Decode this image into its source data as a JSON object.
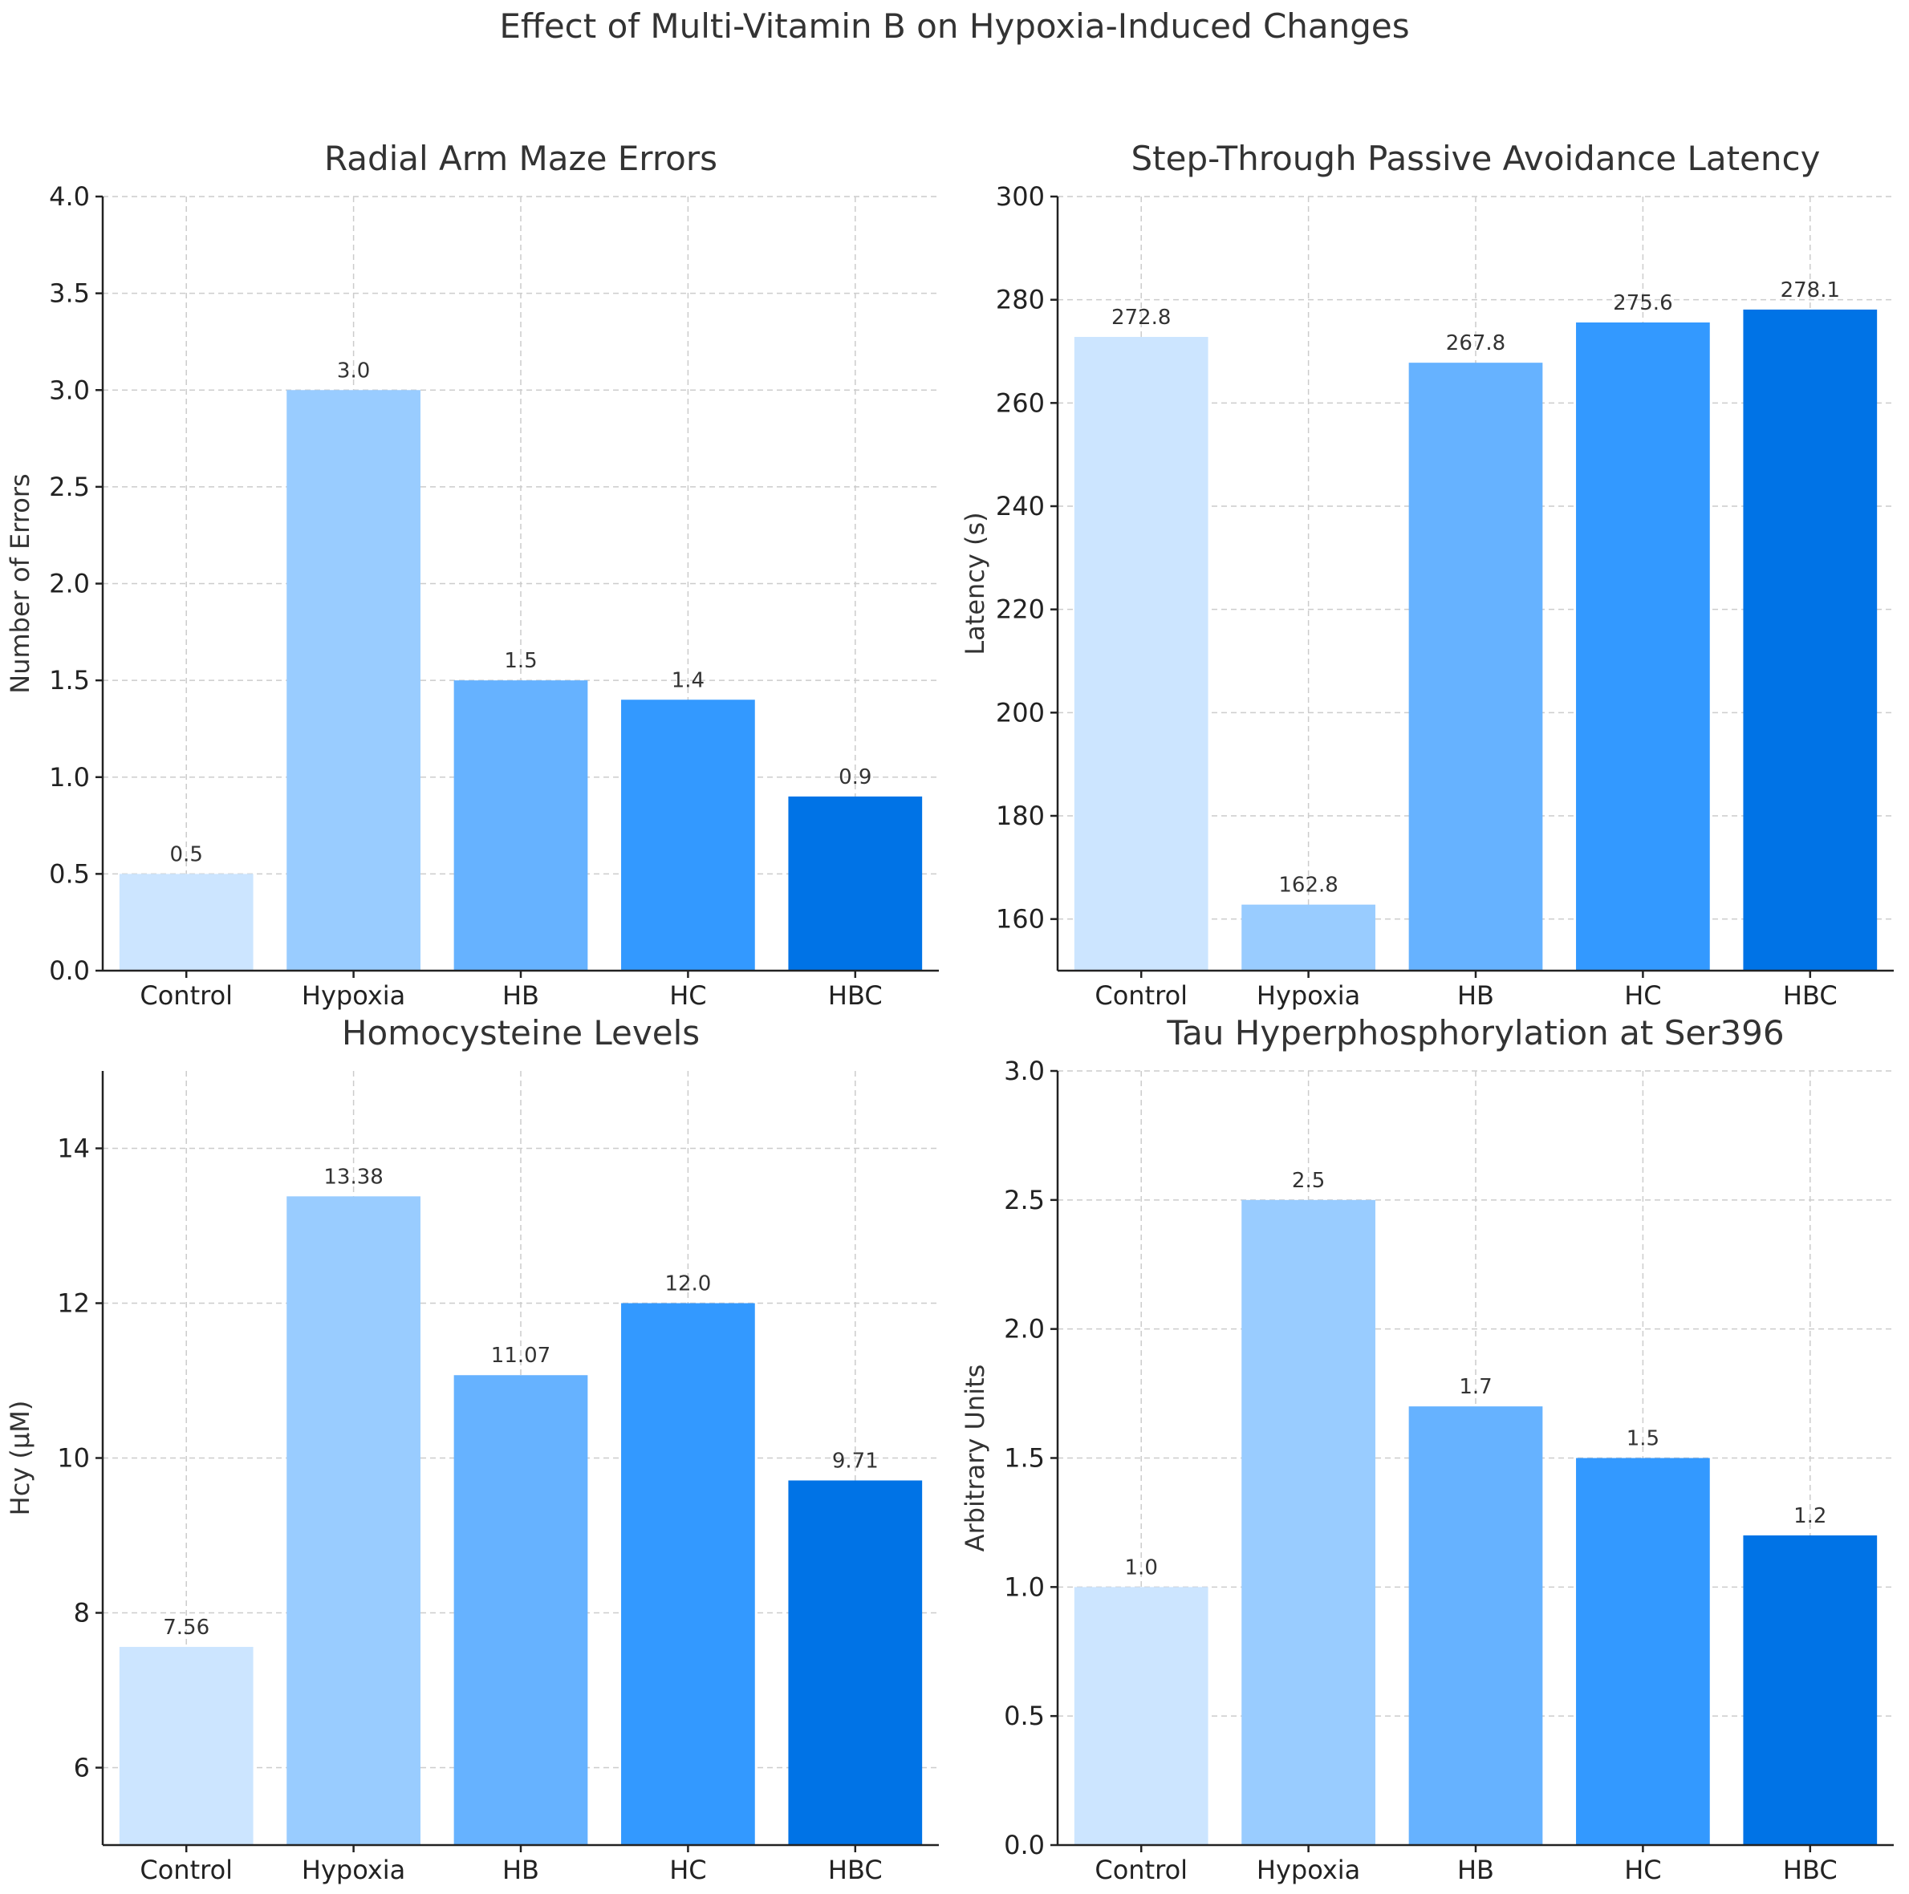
{
  "title": "Effect of Multi-Vitamin B on Hypoxia-Induced Changes",
  "colors": [
    "#cce5ff",
    "#99ccff",
    "#66b2ff",
    "#3399ff",
    "#0073e6"
  ],
  "chart_data": [
    {
      "type": "bar",
      "title": "Radial Arm Maze Errors",
      "xlabel": "",
      "ylabel": "Number of Errors",
      "categories": [
        "Control",
        "Hypoxia",
        "HB",
        "HC",
        "HBC"
      ],
      "values": [
        0.5,
        3.0,
        1.5,
        1.4,
        0.9
      ],
      "value_labels": [
        "0.5",
        "3.0",
        "1.5",
        "1.4",
        "0.9"
      ],
      "ylim": [
        0,
        4
      ],
      "yticks": [
        0.0,
        0.5,
        1.0,
        1.5,
        2.0,
        2.5,
        3.0,
        3.5,
        4.0
      ],
      "ytick_labels": [
        "0.0",
        "0.5",
        "1.0",
        "1.5",
        "2.0",
        "2.5",
        "3.0",
        "3.5",
        "4.0"
      ],
      "grid": true
    },
    {
      "type": "bar",
      "title": "Step-Through Passive Avoidance Latency",
      "xlabel": "",
      "ylabel": "Latency (s)",
      "categories": [
        "Control",
        "Hypoxia",
        "HB",
        "HC",
        "HBC"
      ],
      "values": [
        272.8,
        162.8,
        267.8,
        275.6,
        278.1
      ],
      "value_labels": [
        "272.8",
        "162.8",
        "267.8",
        "275.6",
        "278.1"
      ],
      "ylim": [
        150,
        300
      ],
      "yticks": [
        160,
        180,
        200,
        220,
        240,
        260,
        280,
        300
      ],
      "ytick_labels": [
        "160",
        "180",
        "200",
        "220",
        "240",
        "260",
        "280",
        "300"
      ],
      "grid": true
    },
    {
      "type": "bar",
      "title": "Homocysteine Levels",
      "xlabel": "",
      "ylabel": "Hcy (µM)",
      "categories": [
        "Control",
        "Hypoxia",
        "HB",
        "HC",
        "HBC"
      ],
      "values": [
        7.56,
        13.38,
        11.07,
        12.0,
        9.71
      ],
      "value_labels": [
        "7.56",
        "13.38",
        "11.07",
        "12.0",
        "9.71"
      ],
      "ylim": [
        5,
        15
      ],
      "yticks": [
        6,
        8,
        10,
        12,
        14
      ],
      "ytick_labels": [
        "6",
        "8",
        "10",
        "12",
        "14"
      ],
      "grid": true
    },
    {
      "type": "bar",
      "title": "Tau Hyperphosphorylation at Ser396",
      "xlabel": "",
      "ylabel": "Arbitrary Units",
      "categories": [
        "Control",
        "Hypoxia",
        "HB",
        "HC",
        "HBC"
      ],
      "values": [
        1.0,
        2.5,
        1.7,
        1.5,
        1.2
      ],
      "value_labels": [
        "1.0",
        "2.5",
        "1.7",
        "1.5",
        "1.2"
      ],
      "ylim": [
        0,
        3
      ],
      "yticks": [
        0.0,
        0.5,
        1.0,
        1.5,
        2.0,
        2.5,
        3.0
      ],
      "ytick_labels": [
        "0.0",
        "0.5",
        "1.0",
        "1.5",
        "2.0",
        "2.5",
        "3.0"
      ],
      "grid": true
    }
  ]
}
